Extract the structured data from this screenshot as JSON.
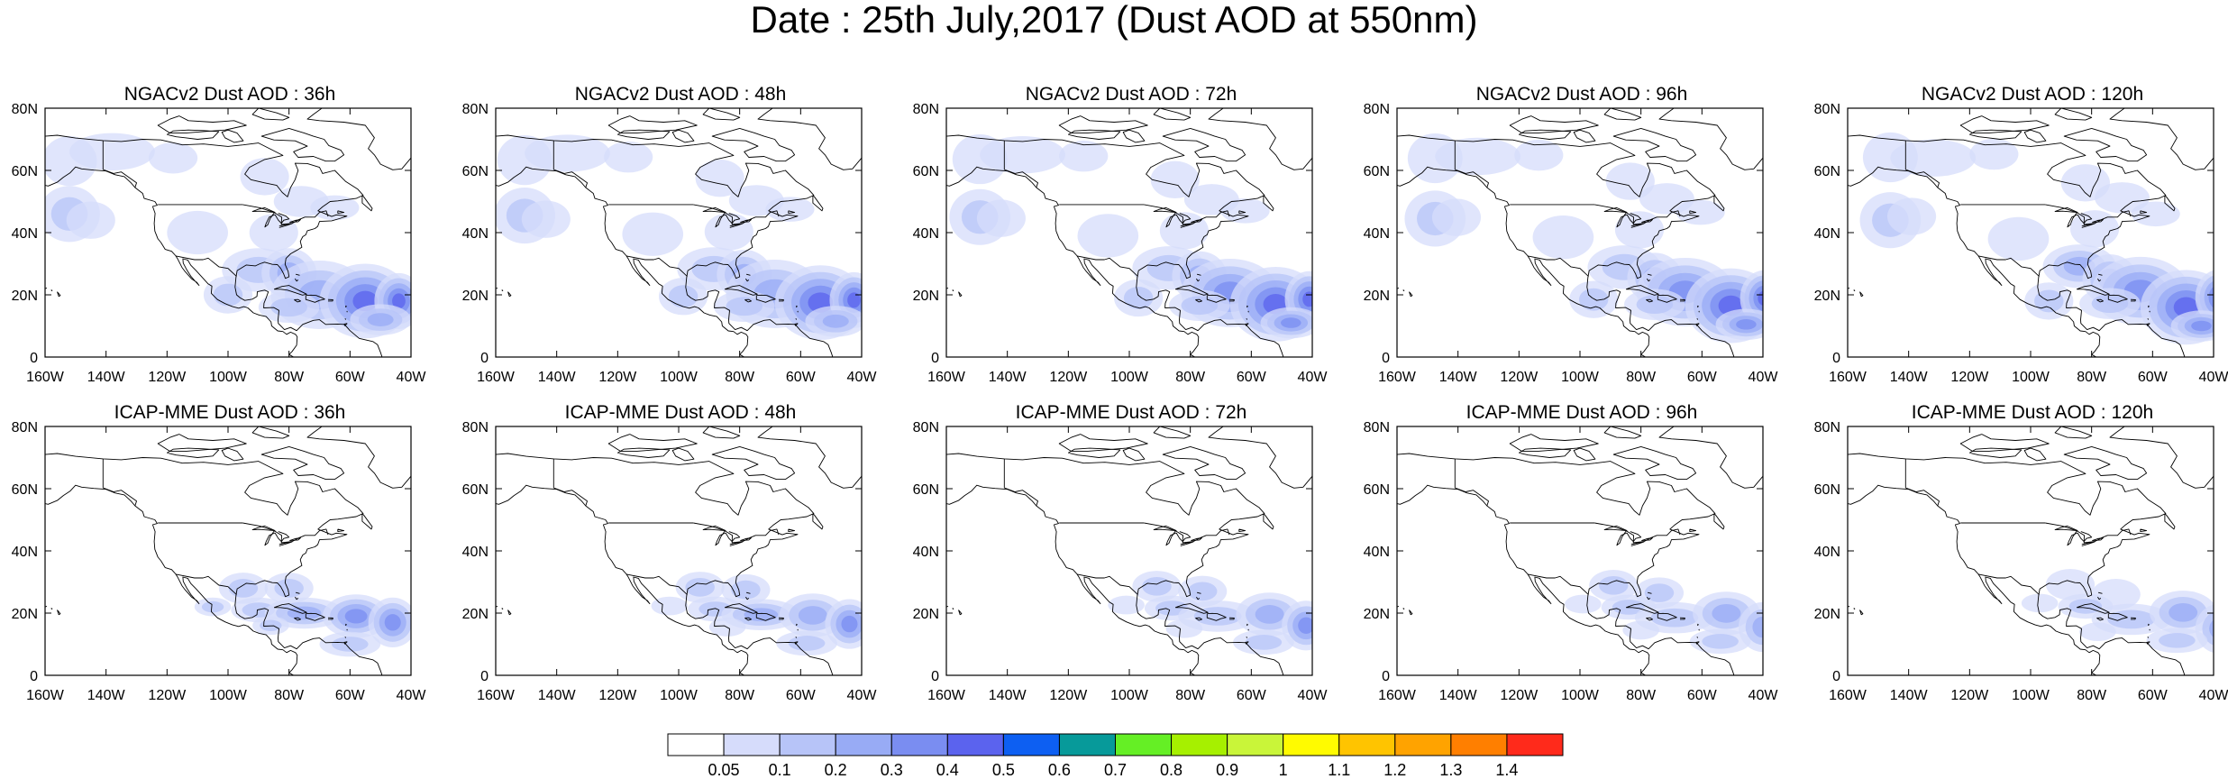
{
  "title": "Date : 25th July,2017 (Dust AOD at 550nm)",
  "panels": [
    {
      "title": "NGACv2 Dust AOD : 36h",
      "model": "NGACv2",
      "lead": 36
    },
    {
      "title": "NGACv2 Dust AOD : 48h",
      "model": "NGACv2",
      "lead": 48
    },
    {
      "title": "NGACv2 Dust AOD : 72h",
      "model": "NGACv2",
      "lead": 72
    },
    {
      "title": "NGACv2 Dust AOD : 96h",
      "model": "NGACv2",
      "lead": 96
    },
    {
      "title": "NGACv2 Dust AOD : 120h",
      "model": "NGACv2",
      "lead": 120
    },
    {
      "title": "ICAP-MME Dust AOD : 36h",
      "model": "ICAP-MME",
      "lead": 36
    },
    {
      "title": "ICAP-MME Dust AOD : 48h",
      "model": "ICAP-MME",
      "lead": 48
    },
    {
      "title": "ICAP-MME Dust AOD : 72h",
      "model": "ICAP-MME",
      "lead": 72
    },
    {
      "title": "ICAP-MME Dust AOD : 96h",
      "model": "ICAP-MME",
      "lead": 96
    },
    {
      "title": "ICAP-MME Dust AOD : 120h",
      "model": "ICAP-MME",
      "lead": 120
    }
  ],
  "axes": {
    "lon_range": [
      -160,
      -40
    ],
    "lat_range": [
      0,
      80
    ],
    "x_ticks": [
      "160W",
      "140W",
      "120W",
      "100W",
      "80W",
      "60W",
      "40W"
    ],
    "y_ticks": [
      "0",
      "20N",
      "40N",
      "60N",
      "80N"
    ]
  },
  "colorbar": {
    "labels": [
      "0.05",
      "0.1",
      "0.2",
      "0.3",
      "0.4",
      "0.5",
      "0.6",
      "0.7",
      "0.8",
      "0.9",
      "1",
      "1.1",
      "1.2",
      "1.3",
      "1.4"
    ],
    "colors": [
      "#ffffff",
      "#d6dcfb",
      "#b7c4f8",
      "#98abf5",
      "#7a8df1",
      "#5b63ee",
      "#0d5ff2",
      "#079a9a",
      "#65ef25",
      "#a6f000",
      "#c9f539",
      "#fffb00",
      "#ffc400",
      "#ffa300",
      "#ff7f00",
      "#ff2a1b"
    ]
  }
}
